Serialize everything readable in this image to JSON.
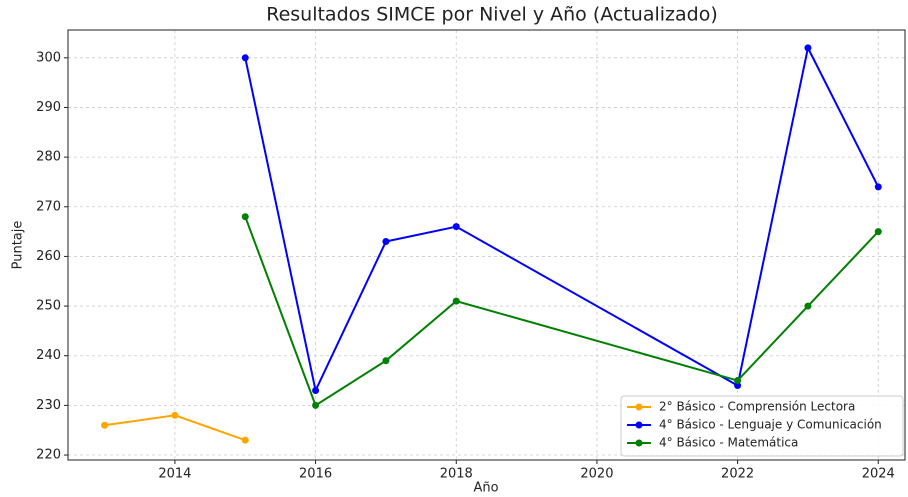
{
  "chart_data": {
    "type": "line",
    "title": "Resultados SIMCE por Nivel y Año (Actualizado)",
    "xlabel": "Año",
    "ylabel": "Puntaje",
    "x": [
      2013,
      2014,
      2015,
      2016,
      2017,
      2018,
      2022,
      2023,
      2024
    ],
    "series": [
      {
        "name": "2° Básico - Comprensión Lectora",
        "color": "orange",
        "values": [
          226,
          228,
          223,
          null,
          null,
          null,
          null,
          null,
          null
        ]
      },
      {
        "name": "4° Básico - Lenguaje y Comunicación",
        "color": "blue",
        "values": [
          null,
          null,
          300,
          233,
          263,
          266,
          234,
          302,
          274
        ]
      },
      {
        "name": "4° Básico - Matemática",
        "color": "green",
        "values": [
          null,
          null,
          268,
          230,
          239,
          251,
          235,
          250,
          265
        ]
      }
    ],
    "xlim": [
      2012.48,
      2024.38
    ],
    "ylim": [
      219,
      305.6
    ],
    "xticks": [
      2014,
      2016,
      2018,
      2020,
      2022,
      2024
    ],
    "yticks": [
      220,
      230,
      240,
      250,
      260,
      270,
      280,
      290,
      300
    ],
    "grid": true,
    "legend": "lower right"
  }
}
